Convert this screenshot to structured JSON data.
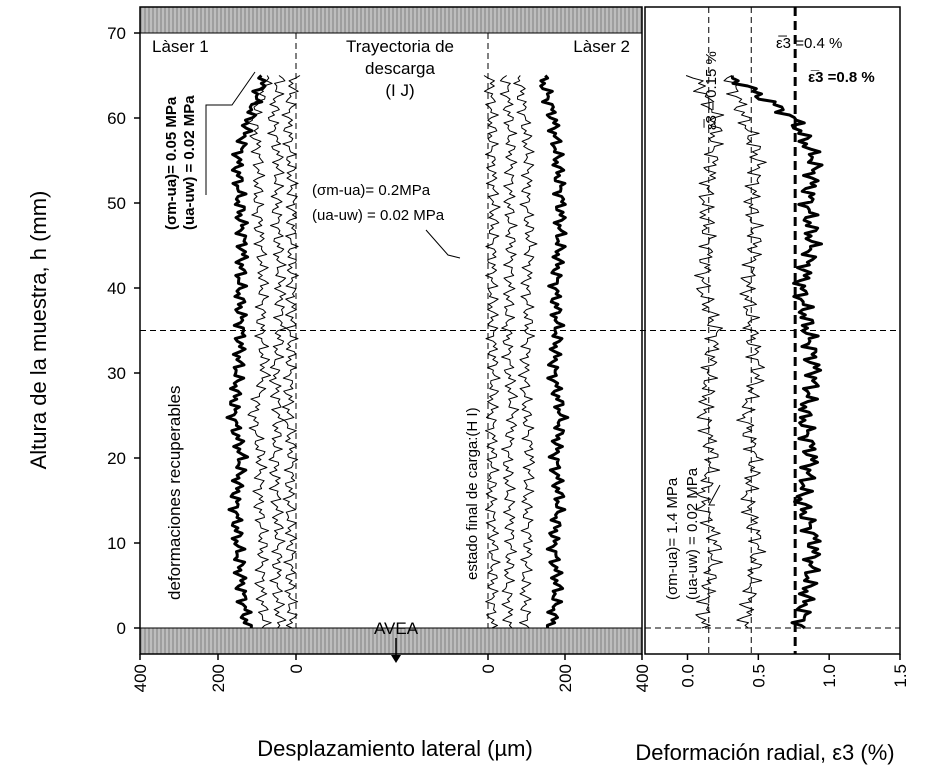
{
  "chart_data": [
    {
      "type": "line",
      "panel": "laser-1",
      "ylabel": "Altura de la muestra, h (mm)",
      "yticks": [
        "0",
        "10",
        "20",
        "30",
        "40",
        "50",
        "60",
        "70"
      ],
      "ylim": [
        0,
        70
      ],
      "xticks": [
        "400",
        "200",
        "0"
      ],
      "xlim": [
        400,
        0
      ],
      "xdirection": "reversed",
      "label": "Làser 1",
      "annotations": {
        "stress1": "(σm-ua)= 0.05 MPa",
        "stress2": "(ua-uw) = 0.02  MPa",
        "recoverable": "deformaciones recuperables"
      },
      "reference_x": 0,
      "series": [
        {
          "style": "thin",
          "y": [
            0,
            5,
            10,
            15,
            20,
            25,
            30,
            35,
            40,
            45,
            50,
            55,
            60,
            65
          ],
          "x": [
            10,
            15,
            12,
            18,
            10,
            20,
            15,
            12,
            10,
            12,
            8,
            15,
            20,
            5
          ]
        },
        {
          "style": "thin",
          "y": [
            0,
            5,
            10,
            15,
            20,
            25,
            30,
            35,
            40,
            45,
            50,
            55,
            60,
            65
          ],
          "x": [
            40,
            50,
            45,
            50,
            55,
            45,
            55,
            40,
            40,
            45,
            50,
            45,
            60,
            40
          ]
        },
        {
          "style": "thin",
          "y": [
            0,
            5,
            10,
            15,
            20,
            25,
            30,
            35,
            40,
            45,
            50,
            55,
            60,
            65
          ],
          "x": [
            80,
            90,
            85,
            95,
            90,
            110,
            80,
            90,
            85,
            90,
            100,
            95,
            110,
            70
          ]
        },
        {
          "style": "bold",
          "y": [
            0,
            5,
            10,
            15,
            20,
            25,
            30,
            35,
            40,
            45,
            50,
            55,
            60,
            65
          ],
          "x": [
            125,
            140,
            150,
            155,
            140,
            160,
            150,
            140,
            145,
            135,
            145,
            150,
            120,
            80
          ]
        }
      ]
    },
    {
      "type": "line",
      "panel": "laser-2",
      "xticks": [
        "0",
        "200",
        "400"
      ],
      "xlim": [
        0,
        400
      ],
      "label": "Làser 2",
      "xlabel": "Desplazamiento lateral  (µm)",
      "annotations": {
        "trajectory": "Trayectoria de",
        "trajectory2": "descarga",
        "points": "(I            J)",
        "stress1": "(σm-ua)= 0.2MPa",
        "stress2": "(ua-uw) = 0.02  MPa",
        "final_state": "estado final de carga:(H        I)",
        "avea": "AVEA"
      },
      "reference_x": 0,
      "series": [
        {
          "style": "thin",
          "y": [
            0,
            5,
            10,
            15,
            20,
            25,
            30,
            35,
            40,
            45,
            50,
            55,
            60,
            65
          ],
          "x": [
            10,
            12,
            15,
            8,
            12,
            10,
            15,
            12,
            10,
            12,
            15,
            10,
            10,
            5
          ]
        },
        {
          "style": "thin",
          "y": [
            0,
            5,
            10,
            15,
            20,
            25,
            30,
            35,
            40,
            45,
            50,
            55,
            60,
            65
          ],
          "x": [
            55,
            50,
            60,
            55,
            50,
            65,
            55,
            50,
            55,
            60,
            55,
            60,
            55,
            45
          ]
        },
        {
          "style": "thin",
          "y": [
            0,
            5,
            10,
            15,
            20,
            25,
            30,
            35,
            40,
            45,
            50,
            55,
            60,
            65
          ],
          "x": [
            100,
            95,
            105,
            100,
            110,
            100,
            95,
            105,
            100,
            110,
            100,
            105,
            95,
            80
          ]
        },
        {
          "style": "bold",
          "y": [
            0,
            5,
            10,
            15,
            20,
            25,
            30,
            35,
            40,
            45,
            50,
            55,
            60,
            65
          ],
          "x": [
            165,
            180,
            170,
            185,
            175,
            190,
            170,
            180,
            175,
            185,
            190,
            180,
            170,
            140
          ]
        }
      ]
    },
    {
      "type": "line",
      "panel": "radial",
      "xlabel": "Deformación radial, ε3 (%)",
      "xticks": [
        "0.0",
        "0.5",
        "1.0",
        "1.5"
      ],
      "xlim": [
        -0.3,
        1.5
      ],
      "reference_lines": [
        {
          "x": 0.15,
          "label": "ε̅3 = 0.15 %",
          "style": "dashed"
        },
        {
          "x": 0.45,
          "label": "ε̅3 =0.4 %",
          "style": "dashed"
        },
        {
          "x": 0.76,
          "label": "ε̅3 =0.8 %",
          "style": "bold-dashed"
        }
      ],
      "annotations": {
        "stress1": "(σm-ua)= 1.4 MPa",
        "stress2": "(ua-uw) = 0.02  MPa"
      },
      "series": [
        {
          "style": "thin",
          "y": [
            0,
            5,
            10,
            15,
            20,
            25,
            30,
            35,
            40,
            45,
            50,
            55,
            60,
            65
          ],
          "x": [
            0.1,
            0.15,
            0.2,
            0.1,
            0.18,
            0.12,
            0.15,
            0.2,
            0.1,
            0.15,
            0.12,
            0.18,
            0.2,
            0.05
          ]
        },
        {
          "style": "thin",
          "y": [
            0,
            5,
            10,
            15,
            20,
            25,
            30,
            35,
            40,
            45,
            50,
            55,
            60,
            65
          ],
          "x": [
            0.4,
            0.45,
            0.5,
            0.42,
            0.48,
            0.4,
            0.5,
            0.45,
            0.42,
            0.48,
            0.45,
            0.5,
            0.4,
            0.3
          ]
        },
        {
          "style": "bold",
          "y": [
            0,
            5,
            10,
            15,
            20,
            25,
            30,
            35,
            40,
            45,
            50,
            55,
            60,
            65
          ],
          "x": [
            0.8,
            0.85,
            0.9,
            0.8,
            0.88,
            0.82,
            0.9,
            0.85,
            0.8,
            0.88,
            0.85,
            0.9,
            0.75,
            0.3
          ]
        }
      ]
    }
  ]
}
